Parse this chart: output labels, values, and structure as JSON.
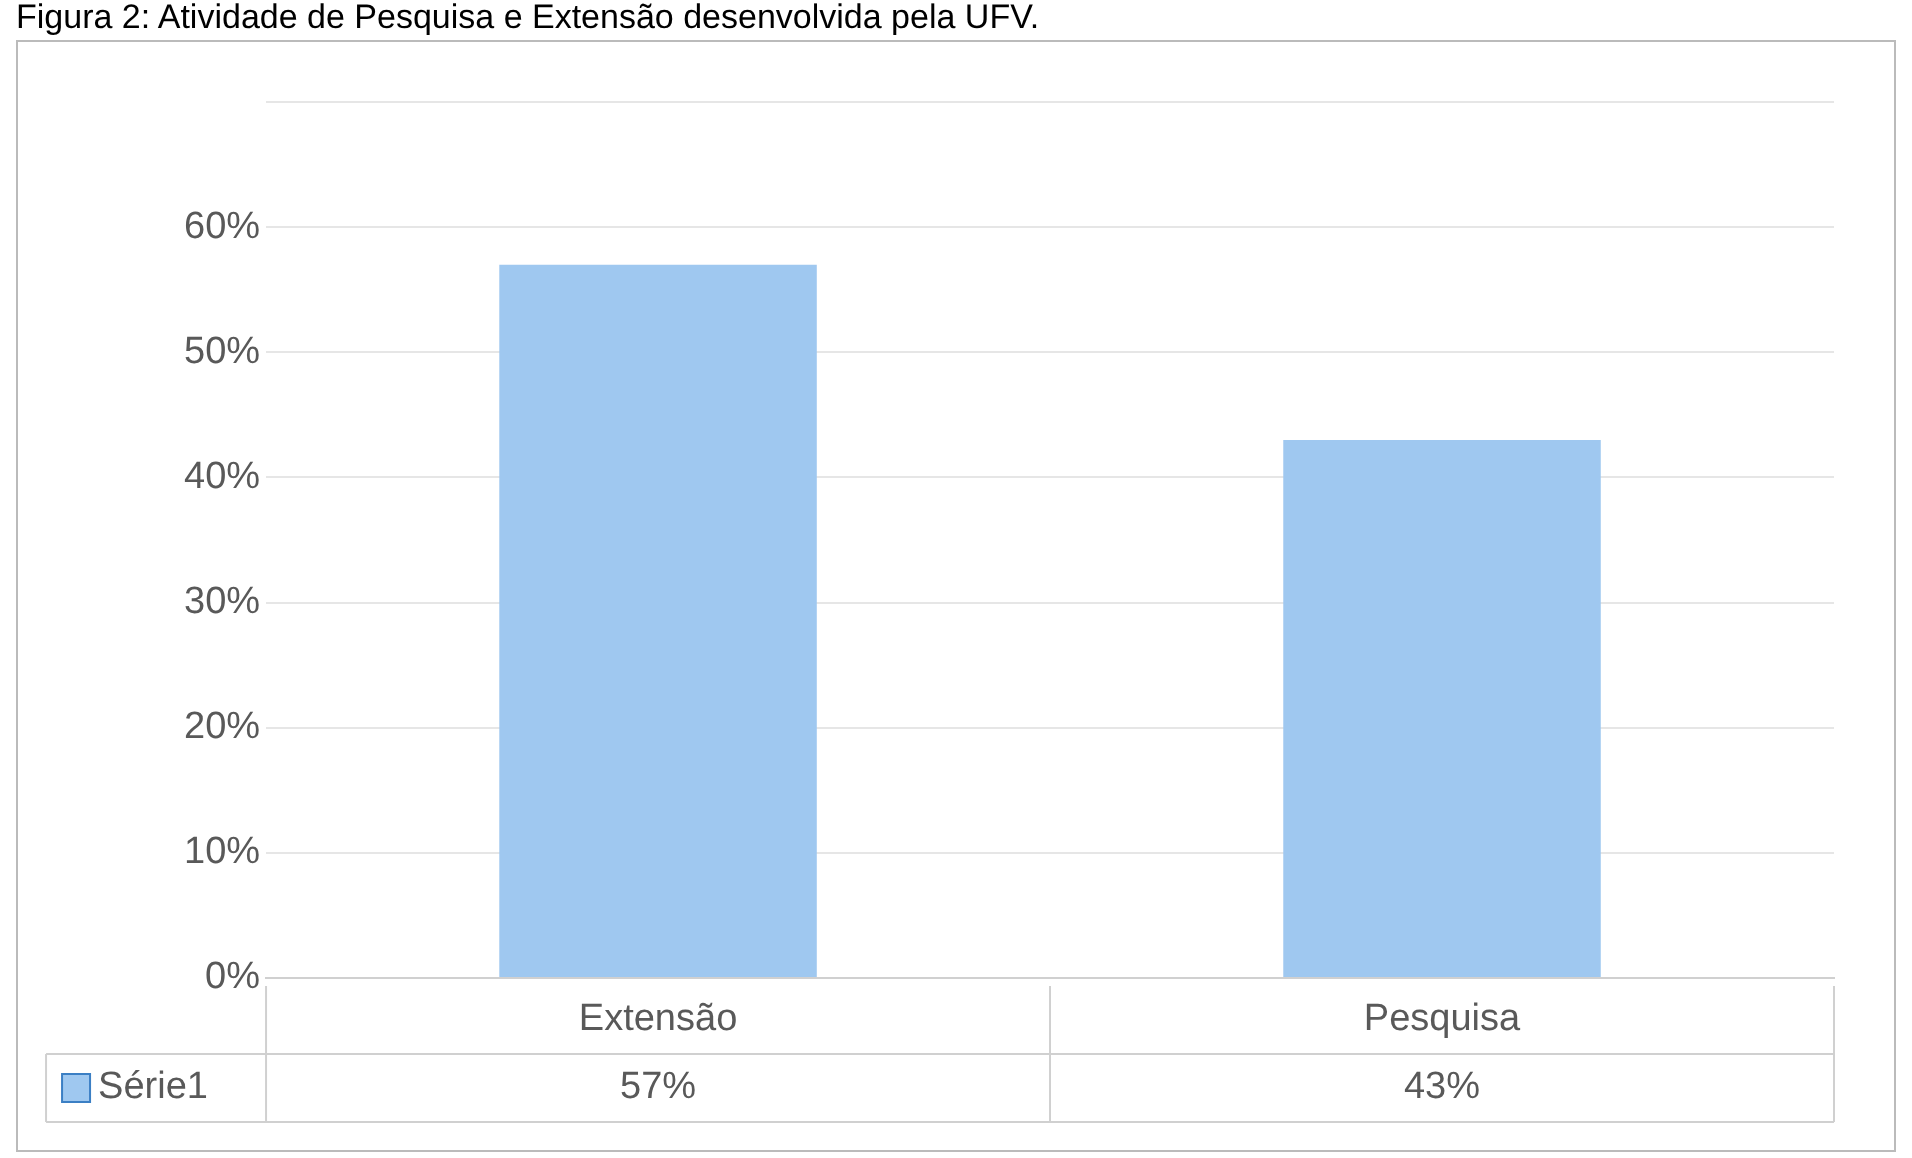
{
  "chart_data": {
    "type": "bar",
    "title": "Figura 2: Atividade de Pesquisa e Extensão desenvolvida pela UFV.",
    "categories": [
      "Extensão",
      "Pesquisa"
    ],
    "series": [
      {
        "name": "Série1",
        "color": "#9fc8f0",
        "values": [
          57,
          43
        ],
        "value_labels": [
          "57%",
          "43%"
        ]
      }
    ],
    "ylim": [
      0,
      70
    ],
    "yticks": [
      {
        "value": 0,
        "label": "0%"
      },
      {
        "value": 10,
        "label": "10%"
      },
      {
        "value": 20,
        "label": "20%"
      },
      {
        "value": 30,
        "label": "30%"
      },
      {
        "value": 40,
        "label": "40%"
      },
      {
        "value": 50,
        "label": "50%"
      },
      {
        "value": 60,
        "label": "60%"
      },
      {
        "value": 70,
        "label": null
      }
    ],
    "grid": "y",
    "legend": "bottom"
  }
}
